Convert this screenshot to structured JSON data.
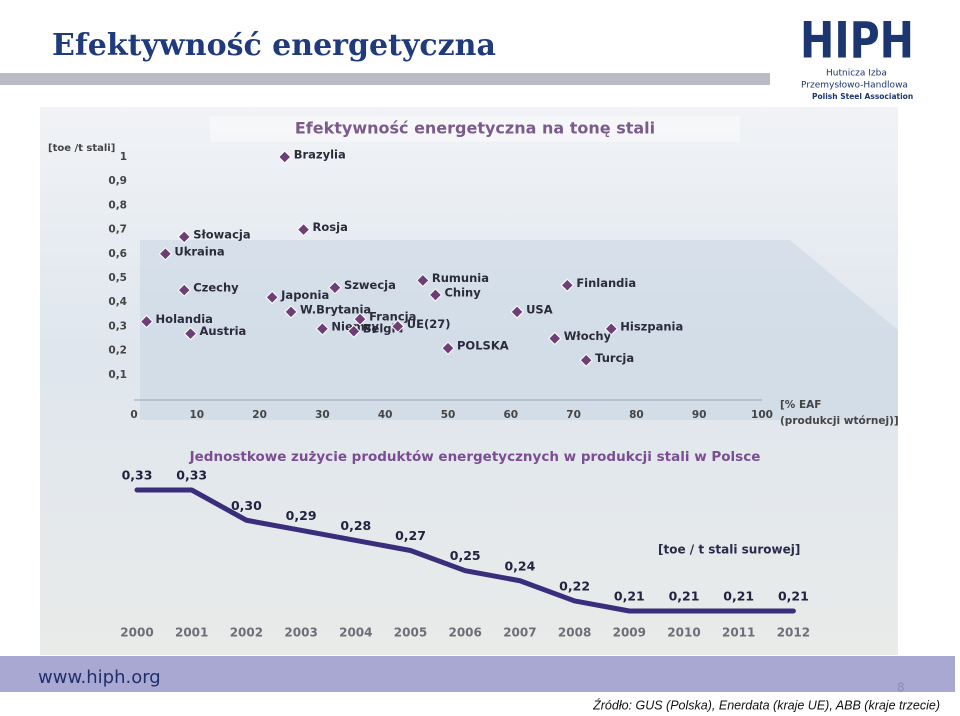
{
  "title": "Efektywność energetyczna",
  "logo": {
    "name": "HIPH",
    "lines": [
      "Hutnicza Izba",
      "Przemysłowo-Handlowa",
      "Polish Steel Association"
    ]
  },
  "footer": {
    "url": "www.hiph.org",
    "page": "8",
    "source": "Źródło: GUS (Polska), Enerdata (kraje UE), ABB (kraje trzecie)"
  },
  "chart_data": [
    {
      "type": "scatter",
      "title": "Efektywność energetyczna na tonę stali",
      "ylabel": "[toe /t stali]",
      "xlabel_lines": [
        "[% EAF",
        "(produkcji wtórnej)]"
      ],
      "color": "#6e3f74",
      "labels": [
        "Brazylia",
        "Rosja",
        "Słowacja",
        "Ukraina",
        "Czechy",
        "Japonia",
        "Szwecja",
        "W.Brytania",
        "Niemcy",
        "Francja",
        "Belgia",
        "UE(27)",
        "Holandia",
        "Austria",
        "Rumunia",
        "Chiny",
        "POLSKA",
        "USA",
        "Finlandia",
        "Włochy",
        "Hiszpania",
        "Turcja"
      ],
      "x": [
        24,
        27,
        8,
        5,
        8,
        22,
        32,
        25,
        30,
        36,
        35,
        42,
        2,
        9,
        46,
        48,
        50,
        61,
        69,
        67,
        76,
        72
      ],
      "y": [
        1.0,
        0.7,
        0.67,
        0.6,
        0.45,
        0.42,
        0.46,
        0.36,
        0.29,
        0.33,
        0.28,
        0.3,
        0.32,
        0.27,
        0.49,
        0.43,
        0.21,
        0.36,
        0.47,
        0.25,
        0.29,
        0.16
      ],
      "xlim": [
        0,
        100
      ],
      "xticks": [
        0,
        10,
        20,
        30,
        40,
        50,
        60,
        70,
        80,
        90,
        100
      ],
      "ylim": [
        0,
        1
      ],
      "yticks": [
        {
          "value": 0.1,
          "label": "0,1"
        },
        {
          "value": 0.2,
          "label": "0,2"
        },
        {
          "value": 0.3,
          "label": "0,3"
        },
        {
          "value": 0.4,
          "label": "0,4"
        },
        {
          "value": 0.5,
          "label": "0,5"
        },
        {
          "value": 0.6,
          "label": "0,6"
        },
        {
          "value": 0.7,
          "label": "0,7"
        },
        {
          "value": 0.8,
          "label": "0,8"
        },
        {
          "value": 0.9,
          "label": "0,9"
        },
        1
      ]
    },
    {
      "type": "line",
      "title": "Jednostkowe zużycie produktów energetycznych w produkcji stali w Polsce",
      "unit_label": "[toe / t stali surowej]",
      "color": "#3a2d7c",
      "categories": [
        "2000",
        "2001",
        "2002",
        "2003",
        "2004",
        "2005",
        "2006",
        "2007",
        "2008",
        "2009",
        "2010",
        "2011",
        "2012"
      ],
      "values": [
        0.33,
        0.33,
        0.3,
        0.29,
        0.28,
        0.27,
        0.25,
        0.24,
        0.22,
        0.21,
        0.21,
        0.21,
        0.21
      ],
      "value_labels": [
        "0,33",
        "0,33",
        "0,30",
        "0,29",
        "0,28",
        "0,27",
        "0,25",
        "0,24",
        "0,22",
        "0,21",
        "0,21",
        "0,21",
        "0,21"
      ]
    }
  ]
}
